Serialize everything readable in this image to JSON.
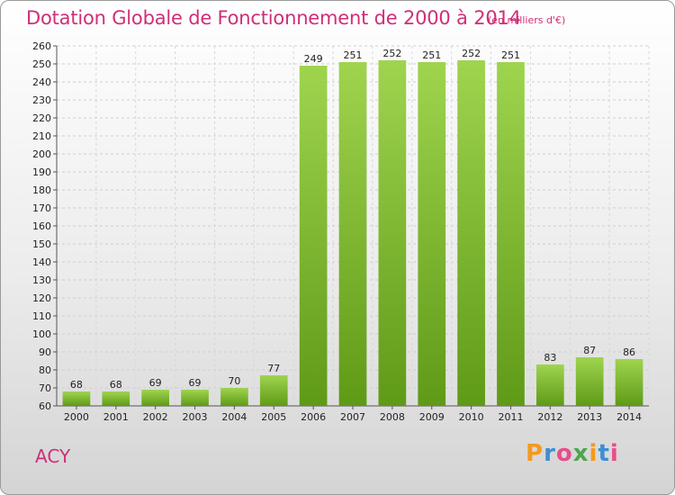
{
  "header": {
    "title": "Dotation Globale de Fonctionnement de 2000 à 2014",
    "subtitle": "(en milliers d'€)"
  },
  "footer": {
    "commune": "ACY",
    "logo_letters": [
      "P",
      "r",
      "o",
      "x",
      "i",
      "t",
      "i"
    ],
    "logo_colors": [
      "#f39a1e",
      "#3c8fd6",
      "#e84e8a",
      "#4aa84a",
      "#f39a1e",
      "#3c8fd6",
      "#e84e8a"
    ]
  },
  "colors": {
    "bar_light": "#9fd44e",
    "bar_dark": "#5f9a17",
    "accent": "#d02e78"
  },
  "chart_data": {
    "type": "bar",
    "title": "Dotation Globale de Fonctionnement de 2000 à 2014",
    "subtitle": "(en milliers d'€)",
    "categories": [
      "2000",
      "2001",
      "2002",
      "2003",
      "2004",
      "2005",
      "2006",
      "2007",
      "2008",
      "2009",
      "2010",
      "2011",
      "2012",
      "2013",
      "2014"
    ],
    "values": [
      68,
      68,
      69,
      69,
      70,
      77,
      249,
      251,
      252,
      251,
      252,
      251,
      83,
      87,
      86
    ],
    "ylim": [
      60,
      260
    ],
    "yticks": [
      60,
      70,
      80,
      90,
      100,
      110,
      120,
      130,
      140,
      150,
      160,
      170,
      180,
      190,
      200,
      210,
      220,
      230,
      240,
      250,
      260
    ],
    "grid": true,
    "data_labels": true
  }
}
